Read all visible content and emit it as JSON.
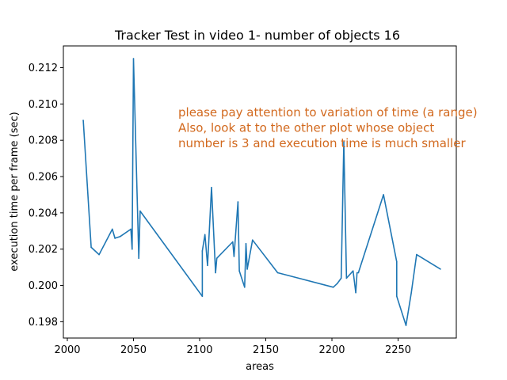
{
  "chart_data": {
    "type": "line",
    "title": "Tracker Test in video 1- number of objects 16",
    "xlabel": "areas",
    "ylabel": "execution time per frame (sec)",
    "xlim": [
      1997,
      2294
    ],
    "ylim": [
      0.1971,
      0.2132
    ],
    "x_ticks": [
      2000,
      2050,
      2100,
      2150,
      2200,
      2250
    ],
    "y_ticks": [
      0.198,
      0.2,
      0.202,
      0.204,
      0.206,
      0.208,
      0.21,
      0.212
    ],
    "x_tick_labels": [
      "2000",
      "2050",
      "2100",
      "2150",
      "2200",
      "2250"
    ],
    "y_tick_labels": [
      "0.198",
      "0.200",
      "0.202",
      "0.204",
      "0.206",
      "0.208",
      "0.210",
      "0.212"
    ],
    "grid": false,
    "series": [
      {
        "color": "#1f77b4",
        "x": [
          2012,
          2018,
          2024,
          2034,
          2036,
          2040,
          2048,
          2049,
          2050,
          2054,
          2055,
          2102,
          2102,
          2104,
          2106,
          2109,
          2112,
          2113,
          2125,
          2126,
          2129,
          2130,
          2134,
          2135,
          2136,
          2140,
          2159,
          2201,
          2204,
          2207,
          2209,
          2211,
          2216,
          2218,
          2219,
          2220,
          2239,
          2249,
          2249,
          2256,
          2260,
          2264,
          2282
        ],
        "y": [
          0.2091,
          0.2021,
          0.2017,
          0.2031,
          0.2026,
          0.2027,
          0.2031,
          0.202,
          0.2125,
          0.2015,
          0.2041,
          0.1994,
          0.2019,
          0.2028,
          0.2011,
          0.2054,
          0.2007,
          0.2015,
          0.2024,
          0.2016,
          0.2046,
          0.2008,
          0.1999,
          0.2023,
          0.2009,
          0.2025,
          0.2007,
          0.1999,
          0.2001,
          0.2004,
          0.2079,
          0.2004,
          0.2008,
          0.1996,
          0.2007,
          0.2007,
          0.205,
          0.2013,
          0.1994,
          0.1978,
          0.1996,
          0.2017,
          0.2009
        ]
      }
    ],
    "annotation": {
      "color": "#d2691e",
      "lines": [
        "please pay attention to variation of time (a range)",
        "Also, look at to the other plot whose object",
        "number is 3 and execution time is much smaller"
      ]
    }
  }
}
